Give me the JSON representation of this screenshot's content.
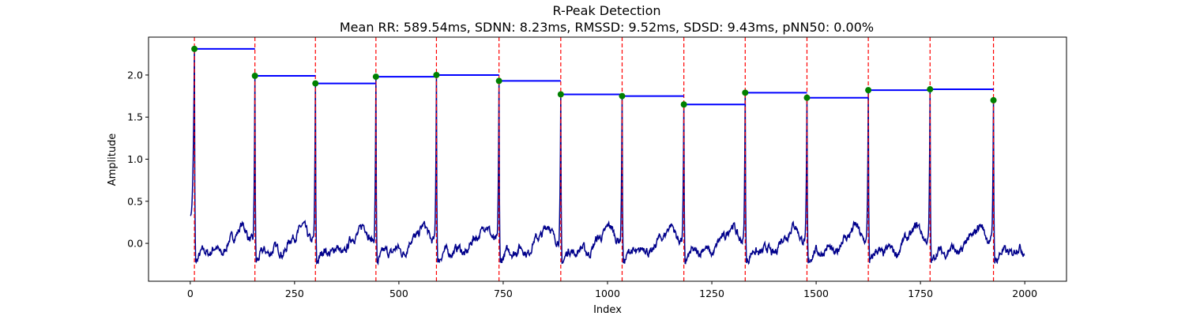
{
  "chart_data": {
    "type": "line",
    "title": "R-Peak Detection",
    "subtitle": "Mean RR: 589.54ms, SDNN: 8.23ms, RMSSD: 9.52ms, SDSD: 9.43ms, pNN50: 0.00%",
    "xlabel": "Index",
    "ylabel": "Amplitude",
    "xlim": [
      -100,
      2100
    ],
    "ylim": [
      -0.45,
      2.45
    ],
    "xticks": [
      0,
      250,
      500,
      750,
      1000,
      1250,
      1500,
      1750,
      2000
    ],
    "yticks": [
      0.0,
      0.5,
      1.0,
      1.5,
      2.0
    ],
    "xtick_labels": [
      "0",
      "250",
      "500",
      "750",
      "1000",
      "1250",
      "1500",
      "1750",
      "2000"
    ],
    "ytick_labels": [
      "0.0",
      "0.5",
      "1.0",
      "1.5",
      "2.0"
    ],
    "grid": false,
    "signal_color": "#00008b",
    "peak_color": "#008000",
    "peak_line_color": "#ff0000",
    "interval_color": "#0000ff",
    "signal_length": 2000,
    "peaks": {
      "x": [
        10,
        155,
        300,
        445,
        590,
        740,
        888,
        1035,
        1183,
        1330,
        1478,
        1625,
        1773,
        1925
      ],
      "y": [
        2.31,
        1.99,
        1.9,
        1.98,
        2.0,
        1.93,
        1.77,
        1.75,
        1.65,
        1.79,
        1.73,
        1.82,
        1.83,
        1.7
      ]
    }
  }
}
